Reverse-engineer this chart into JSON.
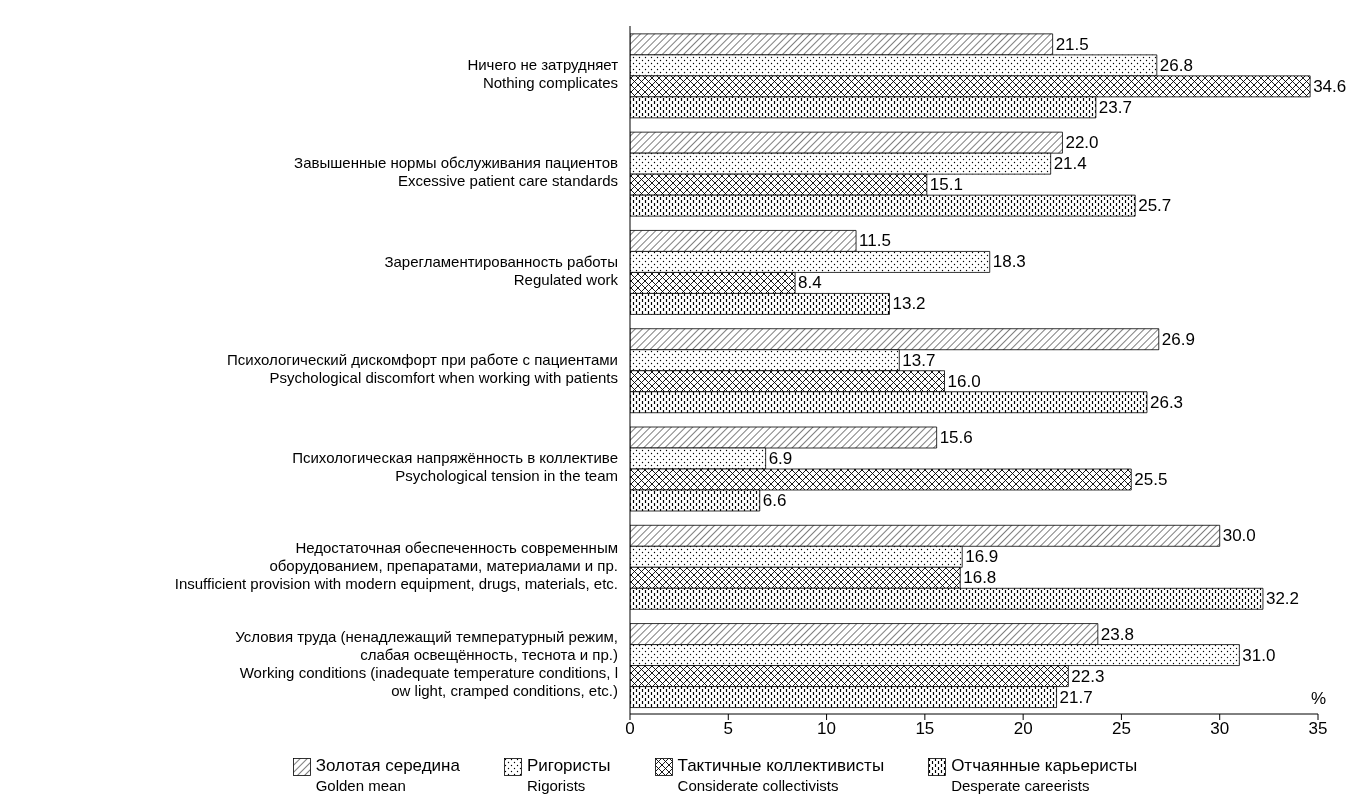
{
  "chart_data": {
    "type": "bar",
    "orientation": "horizontal",
    "categories": [
      "Ничего не затрудняет\nNothing complicates",
      "Завышенные нормы обслуживания пациентов\nExcessive patient care standards",
      "Зарегламентированность работы\nRegulated work",
      "Психологический дискомфорт при работе с пациентами\nPsychological discomfort when working with patients",
      "Психологическая напряжённость в коллективе\nPsychological tension in the team",
      "Недостаточная обеспеченность современным\nоборудованием, препаратами, материалами и пр.\nInsufficient provision with modern equipment, drugs, materials, etc.",
      "Условия труда (ненадлежащий температурный режим,\nслабая освещённость, теснота и пр.)\nWorking conditions (inadequate temperature conditions, l\now light, cramped conditions, etc.)"
    ],
    "series": [
      {
        "name": "Золотая середина\nGolden mean",
        "color": "#000000",
        "values": [
          21.5,
          22.0,
          11.5,
          26.9,
          15.6,
          30.0,
          23.8
        ],
        "value_labels": [
          "21.5",
          "22.0",
          "11.5",
          "26.9",
          "15.6",
          "30.0",
          "23.8"
        ]
      },
      {
        "name": "Ригористы\nRigorists",
        "color": "#000000",
        "values": [
          26.8,
          21.4,
          18.3,
          13.7,
          6.9,
          16.9,
          31.0
        ],
        "value_labels": [
          "26.8",
          "21.4",
          "18.3",
          "13.7",
          "6.9",
          "16.9",
          "31.0"
        ]
      },
      {
        "name": "Тактичные коллективисты\nConsiderate collectivists",
        "color": "#000000",
        "values": [
          34.6,
          15.1,
          8.4,
          16.0,
          25.5,
          16.8,
          22.3
        ],
        "value_labels": [
          "34.6",
          "15.1",
          "8.4",
          "16.0",
          "25.5",
          "16.8",
          "22.3"
        ]
      },
      {
        "name": "Отчаянные карьеристы\nDesperate careerists",
        "color": "#000000",
        "values": [
          23.7,
          25.7,
          13.2,
          26.3,
          6.6,
          32.2,
          21.7
        ],
        "value_labels": [
          "23.7",
          "25.7",
          "13.2",
          "26.3",
          "6.6",
          "32.2",
          "21.7"
        ]
      }
    ],
    "xlim": [
      0,
      35
    ],
    "xticks": [
      0,
      5,
      10,
      15,
      20,
      25,
      30,
      35
    ],
    "xlabel": "%",
    "legend": "bottom"
  }
}
